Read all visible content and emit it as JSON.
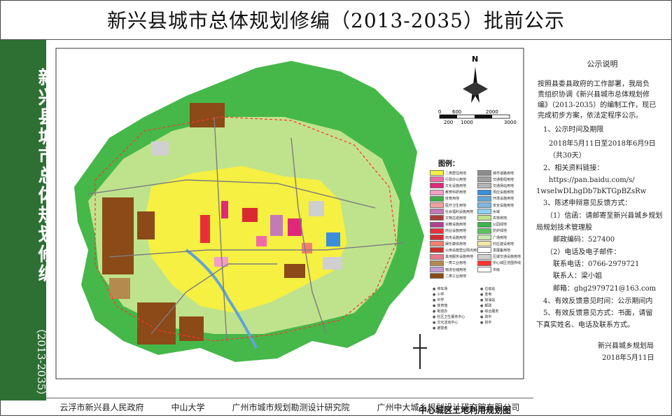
{
  "page": {
    "title": "新兴县城市总体规划修编（2013-2035）批前公示",
    "vertical_title": "新兴县城市总体规划修编",
    "vertical_subtitle": "（2013-2035）"
  },
  "map": {
    "caption": "中心城区土地利用规划图",
    "north_label": "N",
    "scale_top": [
      "0",
      "600",
      "2000"
    ],
    "scale_bottom": [
      "200",
      "1000",
      "3000"
    ],
    "legend_title": "图例：",
    "legend": [
      {
        "label": "二类居住用地",
        "color": "#f5f041"
      },
      {
        "label": "行政办公用地",
        "color": "#f06aa8"
      },
      {
        "label": "文化设施用地",
        "color": "#e0287a"
      },
      {
        "label": "教育科研用地",
        "color": "#f39dc8"
      },
      {
        "label": "体育用地",
        "color": "#3fae4a"
      },
      {
        "label": "医疗卫生用地",
        "color": "#f4a0a0"
      },
      {
        "label": "社会福利设施用地",
        "color": "#c47ab5"
      },
      {
        "label": "文物古迹用地",
        "color": "#a83c3c"
      },
      {
        "label": "宗教设施用地",
        "color": "#b0418f"
      },
      {
        "label": "商业设施用地",
        "color": "#e8303a"
      },
      {
        "label": "商务设施用地",
        "color": "#d82a30"
      },
      {
        "label": "娱乐康体用地",
        "color": "#f28070"
      },
      {
        "label": "公用设施营业网点用地",
        "color": "#c8322e"
      },
      {
        "label": "其他服务设施用地",
        "color": "#e77a8a"
      },
      {
        "label": "一类工业用地",
        "color": "#b58a4e"
      },
      {
        "label": "物流仓储用地",
        "color": "#c39bd3"
      },
      {
        "label": "二类工业用地",
        "color": "#8b4a18"
      },
      {
        "label": "城市道路用地",
        "color": "#8c8c8c"
      },
      {
        "label": "交通枢纽用地",
        "color": "#9e9e9e"
      },
      {
        "label": "交通场站用地",
        "color": "#b5b5b5"
      },
      {
        "label": "供应设施用地",
        "color": "#3a8edb"
      },
      {
        "label": "环境设施用地",
        "color": "#61a4d8"
      },
      {
        "label": "安全设施用地",
        "color": "#7ab8e0"
      },
      {
        "label": "水域",
        "color": "#8fd3ef"
      },
      {
        "label": "农林用地",
        "color": "#bfe38c"
      },
      {
        "label": "公园绿地",
        "color": "#39b54a"
      },
      {
        "label": "防护绿地",
        "color": "#58c45b"
      },
      {
        "label": "广场用地",
        "color": "#c9e8b0"
      },
      {
        "label": "村庄建设用地",
        "color": "#f0e6a8"
      },
      {
        "label": "发展备用地",
        "color": "#ffffff"
      },
      {
        "label": "区域交通设施用地",
        "color": "#d0d0d0"
      },
      {
        "label": "中心城区范围界线",
        "color": "#ff3333"
      },
      {
        "label": "市级",
        "color": "#ffffff"
      }
    ],
    "facility_legend": [
      "停车场",
      "小学",
      "中学",
      "体育馆",
      "街道办",
      "社区卫生服务中心",
      "文化活动中心",
      "避雷者",
      "垃圾站",
      "变电",
      "加油站",
      "邮政",
      "综合服务",
      "高中",
      "初中"
    ]
  },
  "footer": {
    "items": [
      "云浮市新兴县人民政府",
      "中山大学",
      "广州市城市规划勘测设计研究院",
      "广州中大城乡规划设计研究院有限公司"
    ]
  },
  "notice": {
    "title": "公示说明",
    "intro": [
      "按照县委县政府的工作部署，我局负",
      "责组织协调《新兴县城市总体规划修",
      "编》（2013-2035）的编制工作，现已",
      "完成初步方案，依法定程序公示。"
    ],
    "s1_title": "1、公示时间及期限",
    "s1_dates": "2018年5月11日至2018年6月9日",
    "s1_days": "（共30天）",
    "s2_title": "2、相关资料链接：",
    "s2_link1": "https://pan.baidu.com/s/",
    "s2_link2": "1wseIwDLhgDb7bKTGpBZsRw",
    "s3_title": "3、陈述申辩意见反馈方式：",
    "s3_letter1": "（1）信函：请邮寄至新兴县城乡规划",
    "s3_letter2": "局规划技术管理股",
    "s3_zip": "邮政编码：527400",
    "s3_phone_title": "（2）电话及电子邮件：",
    "s3_phone": "联系电话：0766-2979721",
    "s3_contact": "联系人：梁小姐",
    "s3_email": "邮箱：ghg2979721@163.com",
    "s4": "4、有效反馈意见时间：公示期间内",
    "s5a": "5、有效反馈意见方式：书面，请留",
    "s5b": "下真实姓名、电话及联系方式。",
    "signature": "新兴县城乡规划局",
    "date": "2018年5月11日"
  }
}
